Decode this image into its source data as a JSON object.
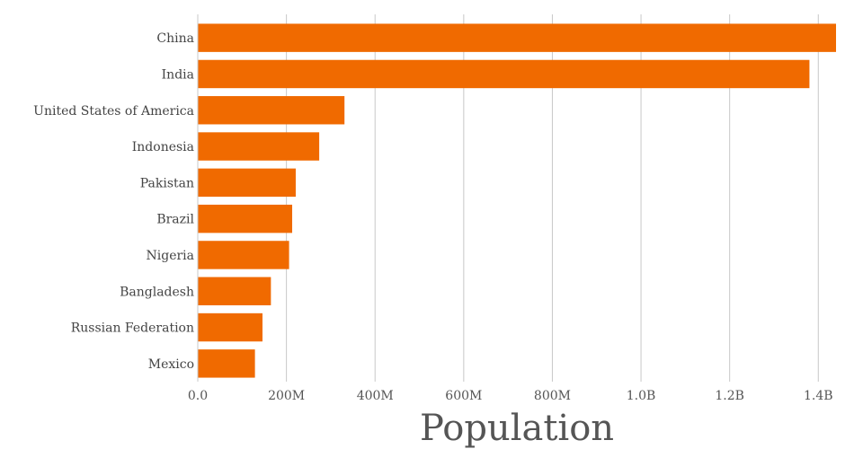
{
  "chart_data": {
    "type": "bar",
    "orientation": "horizontal",
    "xlabel": "Population",
    "ylabel": "",
    "xlim": [
      0,
      1440000000
    ],
    "x_ticks": [
      0,
      200000000,
      400000000,
      600000000,
      800000000,
      1000000000,
      1200000000,
      1400000000
    ],
    "x_tick_labels": [
      "0.0",
      "200M",
      "400M",
      "600M",
      "800M",
      "1.0B",
      "1.2B",
      "1.4B"
    ],
    "grid": "vertical",
    "bar_color": "#f06a00",
    "categories": [
      "China",
      "India",
      "United States of America",
      "Indonesia",
      "Pakistan",
      "Brazil",
      "Nigeria",
      "Bangladesh",
      "Russian Federation",
      "Mexico"
    ],
    "values": [
      1440000000,
      1380000000,
      331000000,
      274000000,
      221000000,
      213000000,
      206000000,
      165000000,
      146000000,
      129000000
    ]
  }
}
